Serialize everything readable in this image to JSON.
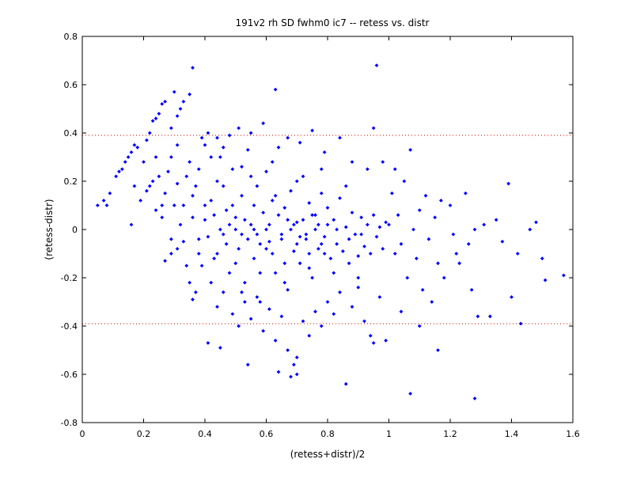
{
  "chart_data": {
    "type": "scatter",
    "title": "191v2 rh SD fwhm0 ic7 -- retess vs. distr",
    "xlabel": "(retess+distr)/2",
    "ylabel": "(retess-distr)",
    "xlim": [
      0,
      1.6
    ],
    "ylim": [
      -0.8,
      0.8
    ],
    "x_ticks": [
      "0",
      "0.2",
      "0.4",
      "0.6",
      "0.8",
      "1",
      "1.2",
      "1.4",
      "1.6"
    ],
    "y_ticks": [
      "-0.8",
      "-0.6",
      "-0.4",
      "-0.2",
      "0",
      "0.2",
      "0.4",
      "0.6",
      "0.8"
    ],
    "x_tick_values": [
      0,
      0.2,
      0.4,
      0.6,
      0.8,
      1.0,
      1.2,
      1.4,
      1.6
    ],
    "y_tick_values": [
      -0.8,
      -0.6,
      -0.4,
      -0.2,
      0,
      0.2,
      0.4,
      0.6,
      0.8
    ],
    "reference_lines": [
      0.39,
      -0.39
    ],
    "grid": false,
    "marker_color": "#0000ff",
    "reference_line_color": "#d00000",
    "points": [
      [
        0.05,
        0.1
      ],
      [
        0.07,
        0.12
      ],
      [
        0.08,
        0.1
      ],
      [
        0.09,
        0.15
      ],
      [
        0.11,
        0.22
      ],
      [
        0.12,
        0.24
      ],
      [
        0.13,
        0.25
      ],
      [
        0.14,
        0.28
      ],
      [
        0.15,
        0.3
      ],
      [
        0.16,
        0.32
      ],
      [
        0.17,
        0.35
      ],
      [
        0.18,
        0.34
      ],
      [
        0.16,
        0.02
      ],
      [
        0.17,
        0.18
      ],
      [
        0.19,
        0.12
      ],
      [
        0.2,
        0.28
      ],
      [
        0.21,
        0.37
      ],
      [
        0.22,
        0.4
      ],
      [
        0.23,
        0.45
      ],
      [
        0.24,
        0.46
      ],
      [
        0.25,
        0.48
      ],
      [
        0.26,
        0.52
      ],
      [
        0.27,
        0.53
      ],
      [
        0.29,
        0.42
      ],
      [
        0.3,
        0.57
      ],
      [
        0.31,
        0.47
      ],
      [
        0.32,
        0.5
      ],
      [
        0.33,
        0.53
      ],
      [
        0.35,
        0.56
      ],
      [
        0.36,
        0.67
      ],
      [
        0.22,
        0.18
      ],
      [
        0.23,
        0.2
      ],
      [
        0.24,
        0.08
      ],
      [
        0.25,
        0.22
      ],
      [
        0.26,
        0.05
      ],
      [
        0.27,
        0.15
      ],
      [
        0.28,
        0.24
      ],
      [
        0.29,
        0.3
      ],
      [
        0.3,
        0.1
      ],
      [
        0.31,
        0.19
      ],
      [
        0.32,
        0.02
      ],
      [
        0.33,
        -0.05
      ],
      [
        0.34,
        -0.15
      ],
      [
        0.35,
        -0.22
      ],
      [
        0.36,
        -0.29
      ],
      [
        0.37,
        -0.26
      ],
      [
        0.38,
        -0.1
      ],
      [
        0.34,
        0.22
      ],
      [
        0.27,
        -0.13
      ],
      [
        0.29,
        -0.04
      ],
      [
        0.31,
        -0.08
      ],
      [
        0.36,
        0.14
      ],
      [
        0.38,
        0.25
      ],
      [
        0.39,
        0.38
      ],
      [
        0.4,
        0.04
      ],
      [
        0.41,
        -0.03
      ],
      [
        0.42,
        0.12
      ],
      [
        0.43,
        -0.12
      ],
      [
        0.44,
        0.2
      ],
      [
        0.45,
        0.3
      ],
      [
        0.46,
        -0.02
      ],
      [
        0.47,
        0.08
      ],
      [
        0.48,
        -0.18
      ],
      [
        0.49,
        0.25
      ],
      [
        0.5,
        0.05
      ],
      [
        0.51,
        -0.08
      ],
      [
        0.52,
        0.14
      ],
      [
        0.53,
        -0.22
      ],
      [
        0.54,
        0.33
      ],
      [
        0.55,
        0.02
      ],
      [
        0.56,
        -0.12
      ],
      [
        0.57,
        0.18
      ],
      [
        0.58,
        -0.3
      ],
      [
        0.59,
        0.07
      ],
      [
        0.6,
        0.24
      ],
      [
        0.61,
        -0.05
      ],
      [
        0.62,
        0.12
      ],
      [
        0.63,
        -0.18
      ],
      [
        0.64,
        0.34
      ],
      [
        0.65,
        -0.02
      ],
      [
        0.66,
        0.09
      ],
      [
        0.67,
        -0.25
      ],
      [
        0.68,
        0.16
      ],
      [
        0.69,
        -0.09
      ],
      [
        0.7,
        0.03
      ],
      [
        0.71,
        -0.14
      ],
      [
        0.72,
        0.22
      ],
      [
        0.73,
        -0.04
      ],
      [
        0.74,
        0.11
      ],
      [
        0.75,
        -0.2
      ],
      [
        0.76,
        0.06
      ],
      [
        0.77,
        -0.08
      ],
      [
        0.78,
        0.15
      ],
      [
        0.79,
        -0.03
      ],
      [
        0.8,
        0.09
      ],
      [
        0.81,
        -0.12
      ],
      [
        0.82,
        0.04
      ],
      [
        0.83,
        -0.06
      ],
      [
        0.84,
        0.13
      ],
      [
        0.85,
        -0.09
      ],
      [
        0.86,
        0.01
      ],
      [
        0.87,
        -0.04
      ],
      [
        0.88,
        0.07
      ],
      [
        0.89,
        -0.02
      ],
      [
        0.9,
        -0.11
      ],
      [
        0.91,
        0.05
      ],
      [
        0.92,
        -0.07
      ],
      [
        0.93,
        0.02
      ],
      [
        0.94,
        -0.1
      ],
      [
        0.95,
        0.06
      ],
      [
        0.96,
        -0.03
      ],
      [
        0.97,
        0.01
      ],
      [
        0.98,
        -0.08
      ],
      [
        0.99,
        0.03
      ],
      [
        0.42,
        0.3
      ],
      [
        0.44,
        -0.1
      ],
      [
        0.46,
        0.18
      ],
      [
        0.48,
        0.02
      ],
      [
        0.5,
        -0.14
      ],
      [
        0.52,
        0.26
      ],
      [
        0.54,
        -0.04
      ],
      [
        0.56,
        0.1
      ],
      [
        0.58,
        -0.06
      ],
      [
        0.6,
        0.0
      ],
      [
        0.62,
        -0.1
      ],
      [
        0.64,
        0.06
      ],
      [
        0.66,
        -0.14
      ],
      [
        0.68,
        0.0
      ],
      [
        0.7,
        -0.06
      ],
      [
        0.72,
        0.04
      ],
      [
        0.74,
        -0.1
      ],
      [
        0.76,
        0.0
      ],
      [
        0.78,
        -0.06
      ],
      [
        0.8,
        0.02
      ],
      [
        0.5,
        0.0
      ],
      [
        0.53,
        0.04
      ],
      [
        0.57,
        -0.02
      ],
      [
        0.61,
        0.02
      ],
      [
        0.65,
        -0.04
      ],
      [
        0.69,
        0.02
      ],
      [
        0.73,
        -0.02
      ],
      [
        0.77,
        0.02
      ],
      [
        0.43,
        0.06
      ],
      [
        0.47,
        -0.06
      ],
      [
        0.4,
        0.35
      ],
      [
        0.41,
        0.4
      ],
      [
        0.44,
        0.38
      ],
      [
        0.46,
        0.34
      ],
      [
        0.48,
        0.39
      ],
      [
        0.51,
        0.42
      ],
      [
        0.55,
        0.4
      ],
      [
        0.59,
        0.44
      ],
      [
        0.63,
        0.58
      ],
      [
        0.67,
        0.38
      ],
      [
        0.71,
        0.36
      ],
      [
        0.75,
        0.41
      ],
      [
        0.79,
        0.32
      ],
      [
        0.84,
        0.38
      ],
      [
        0.88,
        0.28
      ],
      [
        0.93,
        0.25
      ],
      [
        0.95,
        0.42
      ],
      [
        0.96,
        0.68
      ],
      [
        0.42,
        -0.22
      ],
      [
        0.44,
        -0.32
      ],
      [
        0.46,
        -0.26
      ],
      [
        0.49,
        -0.35
      ],
      [
        0.51,
        -0.4
      ],
      [
        0.53,
        -0.3
      ],
      [
        0.55,
        -0.37
      ],
      [
        0.57,
        -0.28
      ],
      [
        0.59,
        -0.42
      ],
      [
        0.61,
        -0.33
      ],
      [
        0.63,
        -0.46
      ],
      [
        0.65,
        -0.36
      ],
      [
        0.67,
        -0.5
      ],
      [
        0.69,
        -0.56
      ],
      [
        0.7,
        -0.6
      ],
      [
        0.72,
        -0.38
      ],
      [
        0.74,
        -0.44
      ],
      [
        0.76,
        -0.34
      ],
      [
        0.78,
        -0.4
      ],
      [
        0.8,
        -0.3
      ],
      [
        0.82,
        -0.35
      ],
      [
        0.84,
        -0.26
      ],
      [
        0.86,
        -0.64
      ],
      [
        0.88,
        -0.32
      ],
      [
        0.9,
        -0.24
      ],
      [
        0.92,
        -0.38
      ],
      [
        0.94,
        -0.44
      ],
      [
        0.95,
        -0.47
      ],
      [
        0.97,
        -0.28
      ],
      [
        0.99,
        -0.46
      ],
      [
        0.41,
        -0.47
      ],
      [
        0.45,
        -0.49
      ],
      [
        0.54,
        -0.56
      ],
      [
        0.64,
        -0.59
      ],
      [
        0.7,
        -0.53
      ],
      [
        0.68,
        -0.61
      ],
      [
        1.0,
        0.02
      ],
      [
        1.01,
        0.15
      ],
      [
        1.02,
        -0.1
      ],
      [
        1.03,
        0.06
      ],
      [
        1.04,
        -0.06
      ],
      [
        1.05,
        0.2
      ],
      [
        1.06,
        -0.2
      ],
      [
        1.07,
        0.33
      ],
      [
        1.08,
        0.0
      ],
      [
        1.09,
        -0.12
      ],
      [
        1.1,
        0.08
      ],
      [
        1.11,
        -0.25
      ],
      [
        1.12,
        0.14
      ],
      [
        1.13,
        -0.04
      ],
      [
        1.14,
        -0.3
      ],
      [
        1.15,
        0.05
      ],
      [
        1.16,
        -0.14
      ],
      [
        1.17,
        0.12
      ],
      [
        1.18,
        -0.2
      ],
      [
        1.2,
        0.1
      ],
      [
        1.21,
        -0.02
      ],
      [
        1.23,
        -0.14
      ],
      [
        1.25,
        0.15
      ],
      [
        1.27,
        -0.25
      ],
      [
        1.28,
        0.0
      ],
      [
        1.29,
        -0.36
      ],
      [
        1.31,
        0.02
      ],
      [
        1.33,
        -0.36
      ],
      [
        1.35,
        0.04
      ],
      [
        1.37,
        -0.05
      ],
      [
        1.39,
        0.19
      ],
      [
        1.4,
        -0.28
      ],
      [
        1.42,
        -0.1
      ],
      [
        1.43,
        -0.39
      ],
      [
        1.46,
        0.0
      ],
      [
        1.48,
        0.03
      ],
      [
        1.5,
        -0.12
      ],
      [
        1.51,
        -0.21
      ],
      [
        1.57,
        -0.19
      ],
      [
        1.07,
        -0.68
      ],
      [
        1.28,
        -0.7
      ],
      [
        1.16,
        -0.5
      ],
      [
        1.1,
        -0.4
      ],
      [
        1.04,
        -0.34
      ],
      [
        1.02,
        0.25
      ],
      [
        0.98,
        0.28
      ],
      [
        1.22,
        -0.1
      ],
      [
        1.26,
        -0.06
      ],
      [
        0.36,
        0.05
      ],
      [
        0.38,
        -0.04
      ],
      [
        0.4,
        0.1
      ],
      [
        0.37,
        0.18
      ],
      [
        0.39,
        -0.15
      ],
      [
        0.33,
        0.1
      ],
      [
        0.35,
        0.28
      ],
      [
        0.31,
        0.35
      ],
      [
        0.29,
        -0.1
      ],
      [
        0.26,
        0.1
      ],
      [
        0.24,
        0.3
      ],
      [
        0.21,
        0.16
      ],
      [
        0.45,
        0.0
      ],
      [
        0.49,
        0.1
      ],
      [
        0.52,
        -0.02
      ],
      [
        0.56,
        0.0
      ],
      [
        0.6,
        -0.08
      ],
      [
        0.63,
        0.14
      ],
      [
        0.67,
        0.04
      ],
      [
        0.71,
        -0.03
      ],
      [
        0.75,
        0.06
      ],
      [
        0.79,
        -0.1
      ],
      [
        0.83,
        0.0
      ],
      [
        0.87,
        -0.14
      ],
      [
        0.91,
        -0.02
      ],
      [
        0.55,
        0.22
      ],
      [
        0.62,
        0.28
      ],
      [
        0.7,
        0.2
      ],
      [
        0.78,
        0.25
      ],
      [
        0.86,
        0.18
      ],
      [
        0.58,
        -0.18
      ],
      [
        0.66,
        -0.22
      ],
      [
        0.74,
        -0.16
      ],
      [
        0.82,
        -0.18
      ],
      [
        0.9,
        -0.2
      ],
      [
        0.52,
        -0.26
      ]
    ]
  }
}
